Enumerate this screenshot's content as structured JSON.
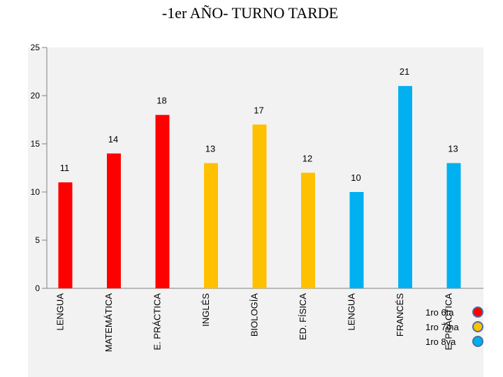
{
  "chart_data": {
    "type": "bar",
    "title": "-1er AÑO- TURNO TARDE",
    "categories": [
      "LENGUA",
      "MATEMÁTICA",
      "E. PRÁCTICA",
      "INGLÉS",
      "BIOLOGÍA",
      "ED. FÍSICA",
      "LENGUA",
      "FRANCÉS",
      "E. PRÁCTICA"
    ],
    "values": [
      11,
      14,
      18,
      13,
      17,
      12,
      10,
      21,
      13
    ],
    "bar_groups": [
      0,
      0,
      0,
      1,
      1,
      1,
      2,
      2,
      2
    ],
    "ylim": [
      0,
      25
    ],
    "yticks": [
      0,
      5,
      10,
      15,
      20,
      25
    ],
    "grid": false,
    "legend_position": "bottom-right",
    "legend": [
      {
        "name": "1ro 6ta",
        "color": "#ff0000"
      },
      {
        "name": "1ro 7ma",
        "color": "#ffc000"
      },
      {
        "name": "1ro 8va",
        "color": "#00b0f0"
      }
    ],
    "plot_background": "#f2f2f2"
  }
}
